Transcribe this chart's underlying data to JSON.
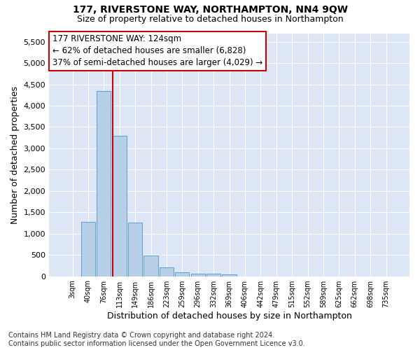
{
  "title": "177, RIVERSTONE WAY, NORTHAMPTON, NN4 9QW",
  "subtitle": "Size of property relative to detached houses in Northampton",
  "xlabel": "Distribution of detached houses by size in Northampton",
  "ylabel": "Number of detached properties",
  "categories": [
    "3sqm",
    "40sqm",
    "76sqm",
    "113sqm",
    "149sqm",
    "186sqm",
    "223sqm",
    "259sqm",
    "296sqm",
    "332sqm",
    "369sqm",
    "406sqm",
    "442sqm",
    "479sqm",
    "515sqm",
    "552sqm",
    "589sqm",
    "625sqm",
    "662sqm",
    "698sqm",
    "735sqm"
  ],
  "values": [
    0,
    1270,
    4350,
    3300,
    1260,
    480,
    210,
    90,
    60,
    55,
    50,
    0,
    0,
    0,
    0,
    0,
    0,
    0,
    0,
    0,
    0
  ],
  "bar_color": "#b8cfe8",
  "bar_edge_color": "#5a9fd4",
  "vline_color": "#cc0000",
  "annotation_text": "177 RIVERSTONE WAY: 124sqm\n← 62% of detached houses are smaller (6,828)\n37% of semi-detached houses are larger (4,029) →",
  "annotation_box_color": "white",
  "annotation_box_edge_color": "#cc0000",
  "ylim": [
    0,
    5700
  ],
  "yticks": [
    0,
    500,
    1000,
    1500,
    2000,
    2500,
    3000,
    3500,
    4000,
    4500,
    5000,
    5500
  ],
  "background_color": "#dce6f5",
  "grid_color": "white",
  "footer": "Contains HM Land Registry data © Crown copyright and database right 2024.\nContains public sector information licensed under the Open Government Licence v3.0.",
  "title_fontsize": 10,
  "subtitle_fontsize": 9,
  "xlabel_fontsize": 9,
  "ylabel_fontsize": 9,
  "footer_fontsize": 7,
  "annot_fontsize": 8.5
}
